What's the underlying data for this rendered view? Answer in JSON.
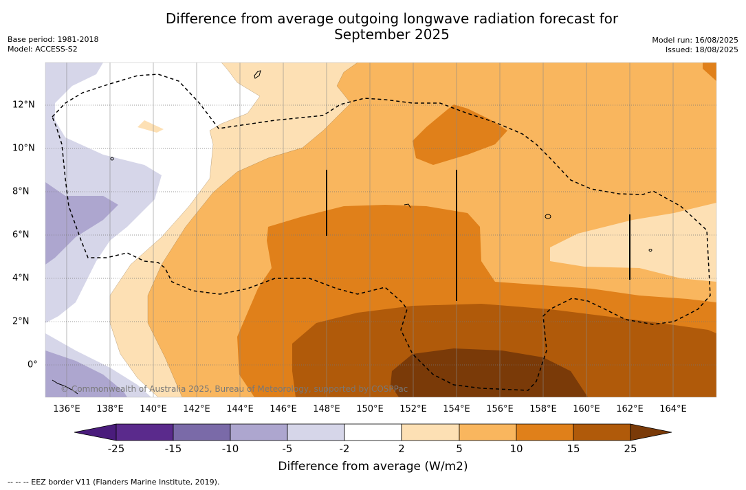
{
  "title_line1": "Difference from average outgoing longwave radiation forecast for",
  "title_line2": "September 2025",
  "base_period": "Base period: 1981-2018",
  "model": "Model: ACCESS-S2",
  "model_run": "Model run: 16/08/2025",
  "issued": "Issued: 18/08/2025",
  "copyright": "© Commonwealth of Australia 2025, Bureau of Meteorology, supported by COSPPac",
  "colorbar": {
    "label": "Difference from average (W/m2)",
    "ticks": [
      "-25",
      "-15",
      "-10",
      "-5",
      "-2",
      "2",
      "5",
      "10",
      "15",
      "25"
    ],
    "colors": [
      "#4a1c7c",
      "#5a2a8c",
      "#7a6aa8",
      "#ada6cf",
      "#d6d6e9",
      "#ffffff",
      "#fde0b4",
      "#f9b65e",
      "#e0801a",
      "#b05a0a",
      "#7a3a08"
    ]
  },
  "footnote": "-- -- -- EEZ border V11 (Flanders Marine Institute, 2019).",
  "map": {
    "x_ticks": [
      "136°E",
      "138°E",
      "140°E",
      "142°E",
      "144°E",
      "146°E",
      "148°E",
      "150°E",
      "152°E",
      "154°E",
      "156°E",
      "158°E",
      "160°E",
      "162°E",
      "164°E"
    ],
    "y_ticks": [
      "12°N",
      "10°N",
      "8°N",
      "6°N",
      "4°N",
      "2°N",
      "0°"
    ]
  }
}
